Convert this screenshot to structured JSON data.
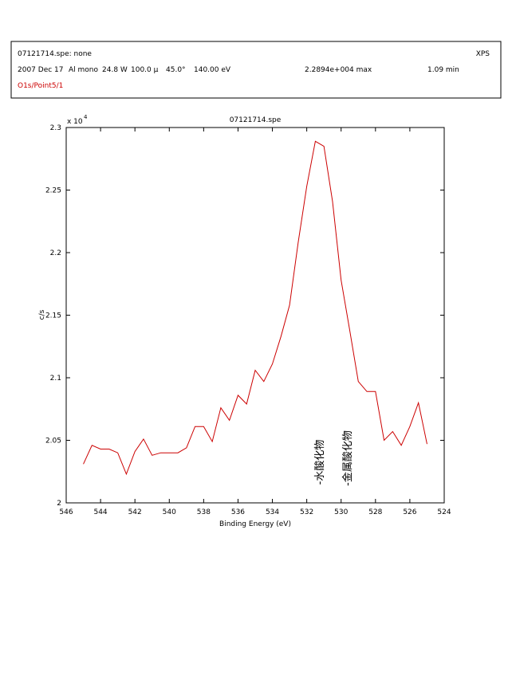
{
  "header": {
    "file": "07121714.spe: none",
    "technique": "XPS",
    "fields": [
      "2007 Dec 17",
      "Al mono",
      "24.8 W",
      "100.0 μ",
      "45.0°",
      "140.00 eV"
    ],
    "max": "2.2894e+004 max",
    "time": "1.09 min",
    "region": "O1s/Point5/1"
  },
  "chart_data": {
    "type": "line",
    "title": "07121714.spe",
    "x_label": "Binding Energy (eV)",
    "y_label": "c/s",
    "multiplier": {
      "base": "x 10",
      "exponent": "4"
    },
    "annotations": [
      "-水酸化物",
      "-金属酸化物"
    ],
    "xlim": [
      546,
      524
    ],
    "xticks": [
      546,
      544,
      542,
      540,
      538,
      536,
      534,
      532,
      530,
      528,
      526,
      524
    ],
    "ylim": [
      2,
      2.3
    ],
    "yticks": [
      2,
      2.05,
      2.1,
      2.15,
      2.2,
      2.25,
      2.3
    ],
    "x": [
      545,
      544.5,
      544,
      543.5,
      543,
      542.5,
      542,
      541.5,
      541,
      540.5,
      540,
      539.5,
      539,
      538.5,
      538,
      537.5,
      537,
      536.5,
      536,
      535.5,
      535,
      534.5,
      534,
      533.5,
      533,
      532.5,
      532,
      531.5,
      531,
      530.5,
      530,
      529.5,
      529,
      528.5,
      528,
      527.5,
      527,
      526.5,
      526,
      525.5,
      525
    ],
    "series": [
      {
        "color": "#cc0000",
        "values": [
          2.031,
          2.046,
          2.043,
          2.043,
          2.04,
          2.023,
          2.041,
          2.051,
          2.038,
          2.04,
          2.04,
          2.04,
          2.044,
          2.061,
          2.061,
          2.049,
          2.076,
          2.066,
          2.086,
          2.079,
          2.106,
          2.097,
          2.111,
          2.133,
          2.158,
          2.208,
          2.253,
          2.289,
          2.285,
          2.241,
          2.178,
          2.138,
          2.097,
          2.089,
          2.089,
          2.05,
          2.057,
          2.046,
          2.061,
          2.08,
          2.047
        ]
      }
    ]
  }
}
